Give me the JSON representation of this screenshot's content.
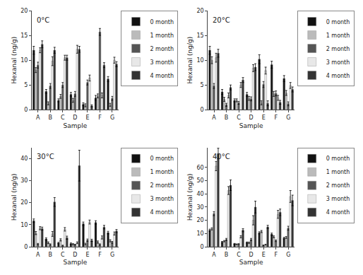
{
  "chart_data": [
    {
      "type": "bar",
      "title": "0°C",
      "xlabel": "Sample",
      "ylabel": "Hexanal (ng/g)",
      "categories": [
        "A",
        "B",
        "C",
        "D",
        "E",
        "F",
        "G"
      ],
      "series": [
        {
          "name": "0 month",
          "color": "#111111",
          "values": [
            12.0,
            3.7,
            1.9,
            3.1,
            1.1,
            2.4,
            6.2
          ],
          "errors": [
            0.8,
            0.4,
            0.3,
            0.4,
            0.3,
            0.5,
            0.5
          ]
        },
        {
          "name": "1 month",
          "color": "#bbbbbb",
          "values": [
            8.0,
            1.3,
            2.7,
            1.9,
            0.9,
            2.8,
            1.0
          ],
          "errors": [
            0.5,
            0.3,
            0.4,
            0.4,
            0.3,
            0.4,
            0.3
          ]
        },
        {
          "name": "2 month",
          "color": "#555555",
          "values": [
            9.0,
            4.8,
            5.0,
            3.2,
            5.5,
            15.7,
            2.3
          ],
          "errors": [
            0.6,
            0.5,
            0.5,
            0.5,
            0.5,
            0.7,
            0.4
          ]
        },
        {
          "name": "3 month",
          "color": "#e8e8e8",
          "values": [
            12.0,
            9.8,
            10.5,
            12.2,
            6.4,
            2.9,
            10.0
          ],
          "errors": [
            0.5,
            0.9,
            0.5,
            0.8,
            0.6,
            0.5,
            0.6
          ]
        },
        {
          "name": "4 month",
          "color": "#333333",
          "values": [
            13.2,
            12.0,
            10.5,
            12.2,
            0.8,
            9.0,
            9.2
          ],
          "errors": [
            0.7,
            0.6,
            0.5,
            0.6,
            0.2,
            0.5,
            0.5
          ]
        }
      ],
      "ylim": [
        0,
        20
      ],
      "yticks": [
        0,
        5,
        10,
        15,
        20
      ],
      "grid": false,
      "legend": "upper right"
    },
    {
      "type": "bar",
      "title": "20°C",
      "xlabel": "Sample",
      "ylabel": "Hexanal (ng/g)",
      "categories": [
        "A",
        "B",
        "C",
        "D",
        "E",
        "F",
        "G"
      ],
      "series": [
        {
          "name": "0 month",
          "color": "#111111",
          "values": [
            12.0,
            3.6,
            1.9,
            3.1,
            10.2,
            9.1,
            6.3
          ],
          "errors": [
            0.8,
            0.5,
            0.3,
            0.4,
            0.9,
            0.7,
            0.6
          ]
        },
        {
          "name": "1 month",
          "color": "#bbbbbb",
          "values": [
            10.0,
            2.1,
            1.9,
            2.3,
            1.4,
            3.2,
            3.4
          ],
          "errors": [
            0.7,
            0.4,
            0.3,
            0.4,
            0.4,
            0.5,
            0.5
          ]
        },
        {
          "name": "2 month",
          "color": "#555555",
          "values": [
            4.8,
            1.0,
            1.4,
            2.2,
            5.1,
            3.3,
            1.2
          ],
          "errors": [
            0.5,
            0.3,
            0.3,
            0.4,
            0.6,
            0.5,
            0.4
          ]
        },
        {
          "name": "3 month",
          "color": "#e8e8e8",
          "values": [
            10.5,
            2.9,
            5.0,
            8.4,
            7.9,
            2.4,
            4.9
          ],
          "errors": [
            0.9,
            0.5,
            0.5,
            0.7,
            0.7,
            0.5,
            0.6
          ]
        },
        {
          "name": "4 month",
          "color": "#333333",
          "values": [
            11.4,
            4.5,
            6.0,
            8.6,
            1.3,
            1.5,
            4.1
          ],
          "errors": [
            0.8,
            0.5,
            0.5,
            0.7,
            0.5,
            0.4,
            0.5
          ]
        }
      ],
      "ylim": [
        0,
        20
      ],
      "yticks": [
        0,
        5,
        10,
        15,
        20
      ],
      "grid": false,
      "legend": "upper right"
    },
    {
      "type": "bar",
      "title": "30°C",
      "xlabel": "Sample",
      "ylabel": "Hexanal (ng/g)",
      "categories": [
        "A",
        "B",
        "C",
        "D",
        "E",
        "F",
        "G"
      ],
      "series": [
        {
          "name": "0 month",
          "color": "#111111",
          "values": [
            11.8,
            3.5,
            1.7,
            1.4,
            10.4,
            11.0,
            6.4
          ],
          "errors": [
            0.8,
            0.5,
            0.3,
            0.3,
            0.8,
            0.8,
            0.6
          ]
        },
        {
          "name": "1 month",
          "color": "#bbbbbb",
          "values": [
            6.2,
            1.8,
            3.1,
            1.1,
            1.2,
            2.1,
            2.7
          ],
          "errors": [
            0.7,
            0.4,
            0.5,
            0.3,
            0.4,
            0.5,
            0.5
          ]
        },
        {
          "name": "2 month",
          "color": "#555555",
          "values": [
            1.2,
            1.0,
            0.5,
            0.9,
            3.0,
            1.0,
            2.0
          ],
          "errors": [
            0.3,
            0.3,
            0.2,
            0.2,
            0.5,
            0.3,
            0.4
          ]
        },
        {
          "name": "3 month",
          "color": "#e8e8e8",
          "values": [
            8.4,
            5.8,
            7.9,
            1.8,
            11.2,
            4.2,
            6.0
          ],
          "errors": [
            0.7,
            1.1,
            0.8,
            0.4,
            0.9,
            0.7,
            0.7
          ]
        },
        {
          "name": "4 month",
          "color": "#333333",
          "values": [
            8.2,
            20.3,
            4.1,
            36.8,
            2.9,
            8.9,
            7.1
          ],
          "errors": [
            0.7,
            2.0,
            0.7,
            7.0,
            0.5,
            0.8,
            0.7
          ]
        }
      ],
      "ylim": [
        0,
        45
      ],
      "yticks": [
        0,
        10,
        20,
        30,
        40
      ],
      "grid": false,
      "legend": "upper right"
    },
    {
      "type": "bar",
      "title": "40°C",
      "xlabel": "Sample",
      "ylabel": "Hexanal (ng/g)",
      "categories": [
        "A",
        "B",
        "C",
        "D",
        "E",
        "F",
        "G"
      ],
      "series": [
        {
          "name": "0 month",
          "color": "#111111",
          "values": [
            12.5,
            3.5,
            2.2,
            3.2,
            10.5,
            9.5,
            6.5
          ],
          "errors": [
            0.8,
            0.5,
            0.3,
            0.4,
            0.8,
            0.8,
            0.6
          ]
        },
        {
          "name": "1 month",
          "color": "#bbbbbb",
          "values": [
            13.5,
            4.2,
            1.8,
            3.0,
            11.5,
            7.5,
            7.0
          ],
          "errors": [
            0.8,
            0.5,
            0.3,
            0.5,
            0.8,
            0.7,
            0.7
          ]
        },
        {
          "name": "2 month",
          "color": "#555555",
          "values": [
            25.0,
            5.5,
            2.0,
            5.5,
            1.0,
            4.5,
            14.0
          ],
          "errors": [
            1.5,
            0.8,
            0.3,
            0.8,
            0.3,
            0.6,
            1.5
          ]
        },
        {
          "name": "3 month",
          "color": "#e8e8e8",
          "values": [
            61.0,
            42.5,
            7.5,
            20.0,
            1.5,
            24.5,
            38.0
          ],
          "errors": [
            3.5,
            3.0,
            0.8,
            3.5,
            0.4,
            3.0,
            4.5
          ]
        },
        {
          "name": "4 month",
          "color": "#333333",
          "values": [
            70.5,
            46.5,
            12.5,
            30.0,
            15.0,
            26.0,
            35.0
          ],
          "errors": [
            4.0,
            4.0,
            1.2,
            4.5,
            1.2,
            2.5,
            4.0
          ]
        }
      ],
      "ylim": [
        0,
        75
      ],
      "yticks": [
        0,
        10,
        20,
        30,
        40,
        50,
        60
      ],
      "grid": false,
      "legend": "upper right"
    }
  ]
}
